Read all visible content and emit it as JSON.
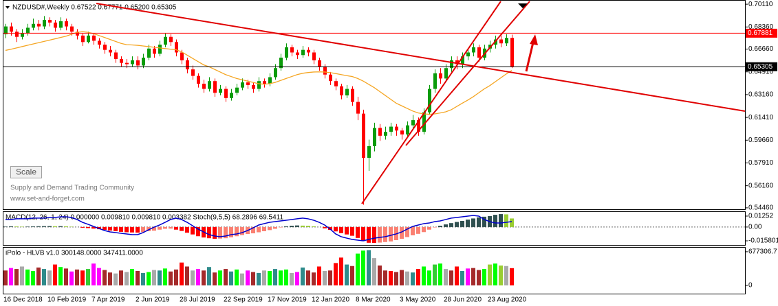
{
  "chart_data": [
    {
      "type": "candlestick",
      "title": "NZDUSD#,Weekly  0.67522 0.67771 0.65200 0.65305",
      "scale_button": "Scale",
      "watermark": [
        "Supply and Demand Trading Community",
        "www.set-and-forget.com"
      ],
      "categories": [
        "16 Dec 2018",
        null,
        null,
        null,
        null,
        null,
        null,
        null,
        "10 Feb 2019",
        null,
        null,
        null,
        null,
        null,
        null,
        null,
        "7 Apr 2019",
        null,
        null,
        null,
        null,
        null,
        null,
        null,
        "2 Jun 2019",
        null,
        null,
        null,
        null,
        null,
        null,
        null,
        "28 Jul 2019",
        null,
        null,
        null,
        null,
        null,
        null,
        null,
        "22 Sep 2019",
        null,
        null,
        null,
        null,
        null,
        null,
        null,
        "17 Nov 2019",
        null,
        null,
        null,
        null,
        null,
        null,
        null,
        "12 Jan 2020",
        null,
        null,
        null,
        null,
        null,
        null,
        null,
        "8 Mar 2020",
        null,
        null,
        null,
        null,
        null,
        null,
        null,
        "3 May 2020",
        null,
        null,
        null,
        null,
        null,
        null,
        null,
        "28 Jun 2020",
        null,
        null,
        null,
        null,
        null,
        null,
        null,
        "23 Aug 2020",
        null,
        null,
        null,
        null
      ],
      "open": [
        0.678,
        0.684,
        0.68,
        0.676,
        0.679,
        0.683,
        0.686,
        0.684,
        0.689,
        0.687,
        0.683,
        0.688,
        0.684,
        0.68,
        0.677,
        0.672,
        0.677,
        0.673,
        0.67,
        0.666,
        0.664,
        0.659,
        0.656,
        0.655,
        0.658,
        0.654,
        0.66,
        0.667,
        0.663,
        0.67,
        0.676,
        0.672,
        0.664,
        0.658,
        0.651,
        0.646,
        0.64,
        0.636,
        0.642,
        0.633,
        0.636,
        0.629,
        0.633,
        0.637,
        0.641,
        0.639,
        0.636,
        0.642,
        0.64,
        0.645,
        0.652,
        0.66,
        0.668,
        0.664,
        0.662,
        0.666,
        0.664,
        0.658,
        0.653,
        0.647,
        0.642,
        0.638,
        0.631,
        0.636,
        0.626,
        0.617,
        0.583,
        0.592,
        0.606,
        0.6,
        0.603,
        0.607,
        0.604,
        0.601,
        0.608,
        0.612,
        0.603,
        0.618,
        0.636,
        0.648,
        0.644,
        0.652,
        0.658,
        0.655,
        0.661,
        0.664,
        0.668,
        0.66,
        0.667,
        0.67,
        0.674,
        0.671,
        0.67522
      ],
      "high": [
        0.686,
        0.687,
        0.682,
        0.682,
        0.686,
        0.69,
        0.689,
        0.692,
        0.691,
        0.689,
        0.691,
        0.69,
        0.686,
        0.682,
        0.679,
        0.68,
        0.679,
        0.675,
        0.672,
        0.669,
        0.666,
        0.661,
        0.659,
        0.661,
        0.661,
        0.663,
        0.67,
        0.669,
        0.673,
        0.679,
        0.678,
        0.674,
        0.666,
        0.66,
        0.654,
        0.648,
        0.643,
        0.645,
        0.644,
        0.639,
        0.638,
        0.636,
        0.64,
        0.644,
        0.643,
        0.641,
        0.645,
        0.644,
        0.648,
        0.655,
        0.663,
        0.671,
        0.67,
        0.666,
        0.669,
        0.668,
        0.666,
        0.66,
        0.655,
        0.649,
        0.644,
        0.64,
        0.639,
        0.638,
        0.63,
        0.62,
        0.597,
        0.61,
        0.609,
        0.607,
        0.61,
        0.609,
        0.606,
        0.611,
        0.616,
        0.614,
        0.621,
        0.639,
        0.651,
        0.652,
        0.655,
        0.661,
        0.661,
        0.664,
        0.667,
        0.671,
        0.67,
        0.67,
        0.673,
        0.677,
        0.677,
        0.678,
        0.67771
      ],
      "low": [
        0.675,
        0.677,
        0.672,
        0.674,
        0.677,
        0.681,
        0.681,
        0.682,
        0.684,
        0.68,
        0.681,
        0.681,
        0.677,
        0.674,
        0.669,
        0.671,
        0.67,
        0.667,
        0.663,
        0.661,
        0.656,
        0.653,
        0.652,
        0.653,
        0.651,
        0.652,
        0.658,
        0.66,
        0.661,
        0.668,
        0.669,
        0.661,
        0.655,
        0.648,
        0.643,
        0.637,
        0.633,
        0.634,
        0.63,
        0.631,
        0.626,
        0.627,
        0.631,
        0.635,
        0.636,
        0.633,
        0.634,
        0.637,
        0.638,
        0.643,
        0.65,
        0.658,
        0.661,
        0.659,
        0.66,
        0.661,
        0.655,
        0.65,
        0.644,
        0.639,
        0.635,
        0.628,
        0.629,
        0.623,
        0.612,
        0.547,
        0.573,
        0.588,
        0.596,
        0.597,
        0.6,
        0.6,
        0.597,
        0.599,
        0.605,
        0.6,
        0.601,
        0.616,
        0.633,
        0.64,
        0.642,
        0.649,
        0.651,
        0.652,
        0.658,
        0.661,
        0.657,
        0.658,
        0.664,
        0.667,
        0.668,
        0.669,
        0.652
      ],
      "close": [
        0.684,
        0.68,
        0.676,
        0.679,
        0.683,
        0.686,
        0.684,
        0.689,
        0.687,
        0.683,
        0.688,
        0.684,
        0.68,
        0.677,
        0.672,
        0.677,
        0.673,
        0.67,
        0.666,
        0.664,
        0.659,
        0.656,
        0.655,
        0.658,
        0.654,
        0.66,
        0.667,
        0.663,
        0.67,
        0.676,
        0.672,
        0.664,
        0.658,
        0.651,
        0.646,
        0.64,
        0.636,
        0.642,
        0.633,
        0.636,
        0.629,
        0.633,
        0.637,
        0.641,
        0.639,
        0.636,
        0.642,
        0.64,
        0.645,
        0.652,
        0.66,
        0.668,
        0.664,
        0.662,
        0.666,
        0.664,
        0.658,
        0.653,
        0.647,
        0.642,
        0.638,
        0.631,
        0.636,
        0.626,
        0.617,
        0.583,
        0.592,
        0.606,
        0.6,
        0.603,
        0.607,
        0.604,
        0.601,
        0.608,
        0.612,
        0.603,
        0.618,
        0.636,
        0.648,
        0.644,
        0.652,
        0.658,
        0.655,
        0.661,
        0.664,
        0.668,
        0.66,
        0.667,
        0.67,
        0.674,
        0.671,
        0.67522,
        0.65305
      ],
      "up_color": "#0a9b0a",
      "down_color": "#ff0000",
      "lines": [
        {
          "color": "#f5a623",
          "values": [
            0.6656,
            0.6665,
            0.6675,
            0.6685,
            0.6695,
            0.6705,
            0.6715,
            0.6725,
            0.6735,
            0.6745,
            0.6755,
            0.6765,
            0.678,
            0.6795,
            0.68,
            0.6795,
            0.6785,
            0.677,
            0.6755,
            0.674,
            0.6725,
            0.671,
            0.67,
            0.6698,
            0.6695,
            0.669,
            0.6685,
            0.668,
            0.6675,
            0.667,
            0.6665,
            0.6661,
            0.6645,
            0.662,
            0.6595,
            0.657,
            0.6545,
            0.653,
            0.651,
            0.649,
            0.647,
            0.6455,
            0.644,
            0.643,
            0.642,
            0.641,
            0.64,
            0.6396,
            0.64,
            0.641,
            0.6425,
            0.644,
            0.6455,
            0.647,
            0.648,
            0.6486,
            0.649,
            0.6491,
            0.649,
            0.6485,
            0.6478,
            0.647,
            0.6462,
            0.6455,
            0.644,
            0.642,
            0.6395,
            0.637,
            0.634,
            0.631,
            0.628,
            0.625,
            0.623,
            0.621,
            0.619,
            0.6175,
            0.6168,
            0.6165,
            0.6168,
            0.6175,
            0.6184,
            0.62,
            0.6225,
            0.625,
            0.6274,
            0.63,
            0.633,
            0.636,
            0.6385,
            0.6415,
            0.6445,
            0.6475,
            0.6502
          ]
        }
      ],
      "hlines": [
        {
          "value": 0.67881,
          "color": "#ff0000"
        },
        {
          "value": 0.65305,
          "color": "#000000"
        }
      ],
      "ylim": [
        0.5435,
        0.7038
      ],
      "yticks": [
        {
          "value": 0.7011,
          "label": "0.70110"
        },
        {
          "value": 0.6836,
          "label": "0.68360"
        },
        {
          "value": 0.6666,
          "label": "0.66660"
        },
        {
          "value": 0.6491,
          "label": "0.64910"
        },
        {
          "value": 0.6316,
          "label": "0.63160"
        },
        {
          "value": 0.6141,
          "label": "0.61410"
        },
        {
          "value": 0.5966,
          "label": "0.59660"
        },
        {
          "value": 0.5791,
          "label": "0.57910"
        },
        {
          "value": 0.5616,
          "label": "0.56160"
        },
        {
          "value": 0.5446,
          "label": "0.54460"
        }
      ]
    },
    {
      "type": "bar",
      "title": "MACD(12, 26, 1, 24) 0.000000 0.009810 0.009810 0.003382 Stoch(9,5,5) 68.2896 69.5411",
      "values": [
        0.0005,
        0.0008,
        0.0006,
        0.0004,
        0.0005,
        0.0007,
        0.0009,
        0.001,
        0.0011,
        0.0009,
        0.001,
        0.0008,
        0.0004,
        0,
        -0.0008,
        -0.0012,
        -0.0018,
        -0.0025,
        -0.0032,
        -0.004,
        -0.0048,
        -0.0055,
        -0.006,
        -0.0062,
        -0.0064,
        -0.0058,
        -0.0048,
        -0.0042,
        -0.003,
        -0.002,
        -0.0018,
        -0.003,
        -0.0045,
        -0.0065,
        -0.0085,
        -0.0105,
        -0.012,
        -0.0128,
        -0.0135,
        -0.0132,
        -0.0128,
        -0.0118,
        -0.0105,
        -0.0092,
        -0.008,
        -0.0072,
        -0.006,
        -0.0048,
        -0.0035,
        -0.002,
        -0.0005,
        0.0008,
        0.0015,
        0.0018,
        0.0016,
        0.0014,
        0.0008,
        0,
        -0.0015,
        -0.0032,
        -0.005,
        -0.007,
        -0.0085,
        -0.01,
        -0.0125,
        -0.016,
        -0.018,
        -0.0182,
        -0.0178,
        -0.0172,
        -0.0165,
        -0.015,
        -0.0135,
        -0.0115,
        -0.0095,
        -0.0078,
        -0.0058,
        -0.003,
        -0.0005,
        0.0015,
        0.003,
        0.0045,
        0.0058,
        0.007,
        0.0085,
        0.0098,
        0.011,
        0.0118,
        0.0125,
        0.014,
        0.0148,
        0.0145,
        0.0098
      ],
      "bar_colors": {
        "pos_rising": "#2f4f4f",
        "pos_falling": "#9acd32",
        "neg_falling": "#ff0000",
        "neg_rising": "#fa8072"
      },
      "line": {
        "color": "#0000cd",
        "values": [
          0.0086,
          0.0086,
          0.0094,
          0.0094,
          0.0094,
          0.0102,
          0.0102,
          0.0102,
          0.0109,
          0.0109,
          0.0117,
          0.0117,
          0.0109,
          0.0086,
          0.0054,
          0.0031,
          0.0007,
          -0.0017,
          -0.004,
          -0.0056,
          -0.0064,
          -0.0072,
          -0.0079,
          -0.0087,
          -0.0087,
          -0.0064,
          -0.0032,
          -0.0001,
          0.0023,
          0.0054,
          0.0086,
          0.0102,
          0.0086,
          0.0054,
          0.0015,
          -0.0024,
          -0.0056,
          -0.0087,
          -0.0103,
          -0.0111,
          -0.0103,
          -0.0087,
          -0.0079,
          -0.0064,
          -0.004,
          -0.0009,
          0.0023,
          0.0039,
          0.0054,
          0.0062,
          0.007,
          0.0078,
          0.0086,
          0.0094,
          0.0102,
          0.0094,
          0.0078,
          0.0054,
          0.0023,
          -0.0024,
          -0.0079,
          -0.0111,
          -0.0127,
          -0.0142,
          -0.015,
          -0.0158,
          -0.0142,
          -0.0127,
          -0.0119,
          -0.0111,
          -0.0095,
          -0.0079,
          -0.0056,
          -0.0024,
          0.0007,
          0.0023,
          0.0039,
          0.0046,
          0.0062,
          0.007,
          0.0086,
          0.0102,
          0.0109,
          0.0117,
          0.0125,
          0.0133,
          0.0125,
          0.0086,
          0.0062,
          0.0046,
          0.0046,
          0.0054,
          0.0062
        ]
      },
      "zero_line": true,
      "ylim": [
        -0.0205,
        0.0172
      ],
      "yticks": [
        0.01252,
        {
          "value": 0,
          "label": "0.00"
        },
        -0.015801
      ]
    },
    {
      "type": "bar",
      "title": "iPolo - HLVB v1.0 300148.0000 347411.0000",
      "values": [
        300000,
        350000,
        330000,
        380000,
        320000,
        290000,
        360000,
        330000,
        300000,
        420000,
        370000,
        340000,
        280000,
        320000,
        300000,
        330000,
        440000,
        350000,
        310000,
        260000,
        240000,
        300000,
        270000,
        330000,
        290000,
        250000,
        270000,
        310000,
        300000,
        340000,
        280000,
        320000,
        460000,
        380000,
        300000,
        330000,
        300000,
        370000,
        260000,
        300000,
        330000,
        280000,
        320000,
        240000,
        300000,
        270000,
        250000,
        300000,
        290000,
        330000,
        300000,
        320000,
        250000,
        270000,
        360000,
        300000,
        260000,
        380000,
        290000,
        300000,
        450000,
        560000,
        420000,
        390000,
        640000,
        700000,
        710000,
        550000,
        400000,
        300000,
        290000,
        270000,
        310000,
        280000,
        260000,
        330000,
        380000,
        300000,
        420000,
        440000,
        330000,
        300000,
        380000,
        290000,
        340000,
        350000,
        310000,
        330000,
        420000,
        440000,
        400000,
        390000,
        347411
      ],
      "colors": [
        "#a52a2a",
        "#f0f",
        "#a52a2a",
        "#a9a9a9",
        "#0f0",
        "#0f0",
        "#a52a2a",
        "#2e8b8b",
        "#a9a9a9",
        "#f00",
        "#0f0",
        "#a52a2a",
        "#f0f",
        "#a52a2a",
        "#f00",
        "#32cd32",
        "#f0f",
        "#f0f",
        "#a52a2a",
        "#a52a2a",
        "#a9a9a9",
        "#a52a2a",
        "#a9a9a9",
        "#0f0",
        "#a52a2a",
        "#2e8b8b",
        "#0f0",
        "#a9a9a9",
        "#2e8b8b",
        "#0f0",
        "#a52a2a",
        "#a52a2a",
        "#f00",
        "#a52a2a",
        "#a9a9a9",
        "#f0f",
        "#a52a2a",
        "#2e8b8b",
        "#a52a2a",
        "#0f0",
        "#a52a2a",
        "#2e8b8b",
        "#0f0",
        "#a9a9a9",
        "#f0f",
        "#a52a2a",
        "#2e8b8b",
        "#a9a9a9",
        "#0f0",
        "#2e8b8b",
        "#0f0",
        "#0f0",
        "#a9a9a9",
        "#f0f",
        "#2e8b8b",
        "#a52a2a",
        "#a52a2a",
        "#f00",
        "#a9a9a9",
        "#a52a2a",
        "#f00",
        "#f00",
        "#2e8b8b",
        "#a52a2a",
        "#0f0",
        "#0f0",
        "#2e8b8b",
        "#a9a9a9",
        "#a52a2a",
        "#a52a2a",
        "#f00",
        "#a52a2a",
        "#a52a2a",
        "#a9a9a9",
        "#2e8b8b",
        "#f00",
        "#0f0",
        "#0f0",
        "#32cd32",
        "#0f0",
        "#a9a9a9",
        "#a52a2a",
        "#f00",
        "#2e8b8b",
        "#f0f",
        "#a52a2a",
        "#a52a2a",
        "#0f0",
        "#9acd32",
        "#0f0",
        "#9acd32",
        "#a9a9a9",
        "#f00"
      ],
      "ylim": [
        0,
        745000
      ],
      "yticks": [
        677306.7,
        0
      ]
    }
  ]
}
